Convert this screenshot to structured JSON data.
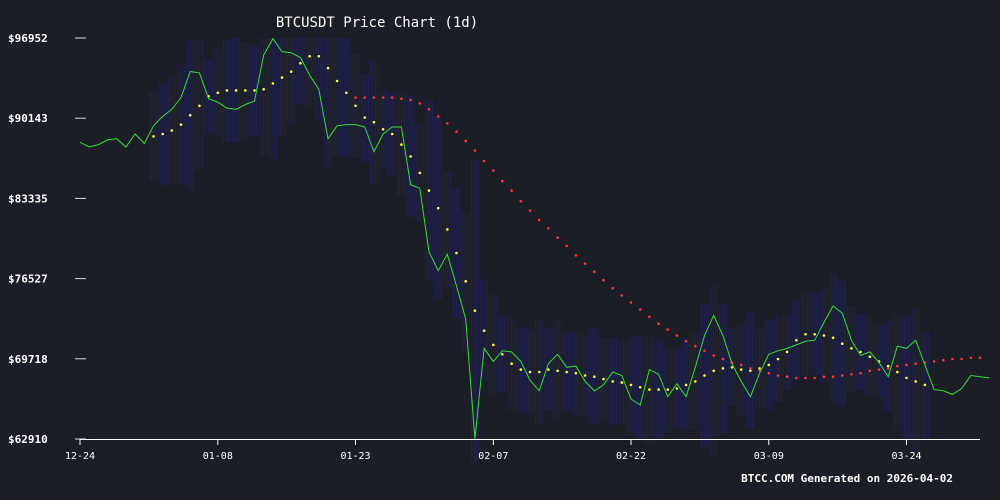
{
  "chart_data": {
    "type": "line",
    "title": "BTCUSDT Price Chart (1d)",
    "xlabel": "",
    "ylabel": "",
    "footer": "BTCC.COM Generated on 2026-04-02",
    "x_start": "2025-12-24",
    "x_end": "2026-04-01",
    "ylim": [
      62910,
      96952
    ],
    "y_ticks": [
      {
        "value": 62910,
        "label": "$62910"
      },
      {
        "value": 69718,
        "label": "$69718"
      },
      {
        "value": 76527,
        "label": "$76527"
      },
      {
        "value": 83335,
        "label": "$83335"
      },
      {
        "value": 90143,
        "label": "$90143"
      },
      {
        "value": 96952,
        "label": "$96952"
      }
    ],
    "x_ticks": [
      {
        "date": "2025-12-24",
        "label": "12-24"
      },
      {
        "date": "2026-01-08",
        "label": "01-08"
      },
      {
        "date": "2026-01-23",
        "label": "01-23"
      },
      {
        "date": "2026-02-07",
        "label": "02-07"
      },
      {
        "date": "2026-02-22",
        "label": "02-22"
      },
      {
        "date": "2026-03-09",
        "label": "03-09"
      },
      {
        "date": "2026-03-24",
        "label": "03-24"
      }
    ],
    "grid": false,
    "colors": {
      "background": "#1b1e27",
      "price": "#33dd33",
      "fast_ma": "#ffff33",
      "slow_ma": "#ff3333",
      "volume_band": "#2a2a8c",
      "axis": "#ffffff"
    },
    "series": [
      {
        "key": "price",
        "start_date": "2025-12-24",
        "values": [
          88100,
          87700,
          87900,
          88300,
          88400,
          87700,
          88800,
          88000,
          89500,
          90300,
          90900,
          91900,
          94100,
          94000,
          91800,
          91500,
          91000,
          90900,
          91300,
          91600,
          95500,
          96900,
          95800,
          95700,
          95300,
          93800,
          92600,
          88400,
          89500,
          89600,
          89600,
          89400,
          87300,
          88800,
          89400,
          89400,
          84500,
          84200,
          78800,
          77200,
          78600,
          75900,
          73100,
          62910,
          70600,
          69500,
          70400,
          70300,
          69500,
          67900,
          67000,
          69300,
          70100,
          69000,
          69100,
          67800,
          67000,
          67500,
          68600,
          68300,
          66300,
          65800,
          68800,
          68400,
          66500,
          67600,
          66500,
          69000,
          71700,
          73400,
          71700,
          69300,
          67800,
          66500,
          68500,
          70100,
          70400,
          70600,
          70900,
          71200,
          71300,
          72800,
          74200,
          73600,
          71300,
          70000,
          70300,
          69400,
          68200,
          70800,
          70600,
          71300,
          69200,
          67100,
          67000,
          66700,
          67200,
          68300,
          68200,
          68100
        ]
      },
      {
        "key": "fast_ma",
        "start_date": "2026-01-01",
        "values": [
          88600,
          88800,
          89100,
          89600,
          90400,
          91200,
          92000,
          92300,
          92500,
          92500,
          92500,
          92500,
          92600,
          93100,
          93600,
          94100,
          94800,
          95400,
          95400,
          94400,
          93300,
          92300,
          91200,
          90200,
          89800,
          89200,
          88800,
          87900,
          86900,
          85500,
          84000,
          82500,
          80700,
          78700,
          76300,
          73800,
          72100,
          70900,
          70100,
          69300,
          68800,
          68600,
          68600,
          68800,
          68700,
          68600,
          68500,
          68300,
          68200,
          68000,
          67800,
          67700,
          67500,
          67300,
          67100,
          67100,
          67100,
          67200,
          67500,
          67800,
          68300,
          68700,
          68900,
          69000,
          68800,
          68700,
          68900,
          69200,
          69700,
          70300,
          71300,
          71800,
          71800,
          71700,
          71500,
          71000,
          70600,
          70300,
          69900,
          69500,
          69100,
          68600,
          68100,
          67800,
          67500
        ]
      },
      {
        "key": "slow_ma",
        "start_date": "2026-01-23",
        "values": [
          91900,
          91900,
          91900,
          91900,
          91900,
          91800,
          91700,
          91400,
          90900,
          90300,
          89700,
          89000,
          88200,
          87400,
          86500,
          85700,
          84800,
          84000,
          83100,
          82300,
          81500,
          80800,
          80000,
          79300,
          78500,
          77800,
          77100,
          76400,
          75700,
          75100,
          74500,
          73900,
          73300,
          72700,
          72200,
          71700,
          71200,
          70800,
          70400,
          70000,
          69700,
          69400,
          69200,
          68900,
          68700,
          68500,
          68300,
          68200,
          68100,
          68100,
          68100,
          68200,
          68200,
          68300,
          68400,
          68500,
          68700,
          68800,
          68900,
          69100,
          69200,
          69300,
          69400,
          69500,
          69600,
          69700,
          69700,
          69800,
          69800
        ]
      }
    ]
  }
}
